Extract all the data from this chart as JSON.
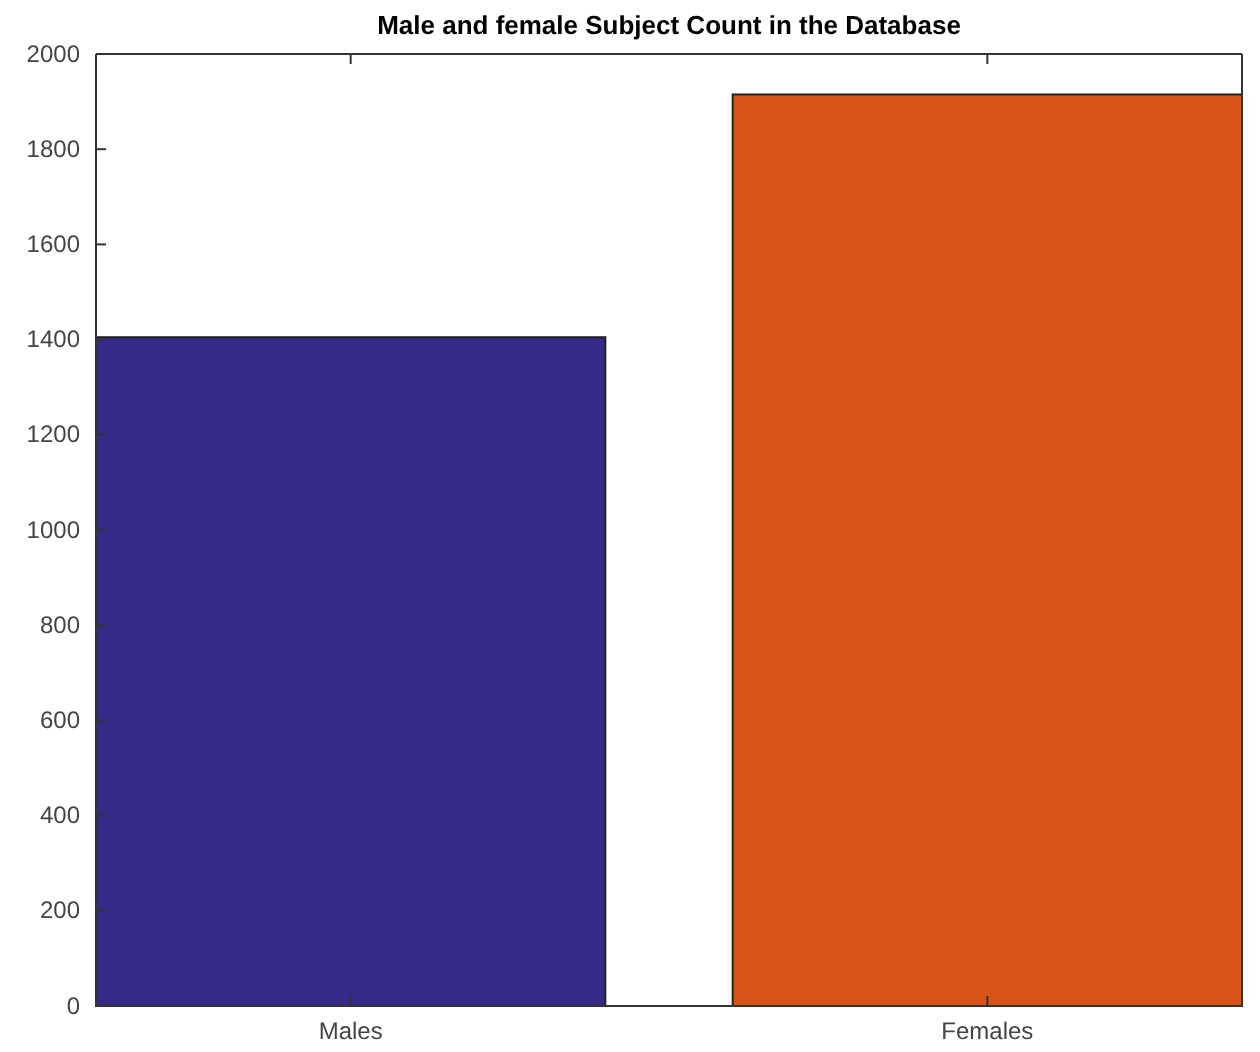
{
  "chart_data": {
    "type": "bar",
    "title": "Male and female Subject Count in the Database",
    "categories": [
      "Males",
      "Females"
    ],
    "values": [
      1405,
      1915
    ],
    "colors": [
      "#352a87",
      "#d95319"
    ],
    "ylim": [
      0,
      2000
    ],
    "yticks": [
      0,
      200,
      400,
      600,
      800,
      1000,
      1200,
      1400,
      1600,
      1800,
      2000
    ],
    "grid": false
  }
}
